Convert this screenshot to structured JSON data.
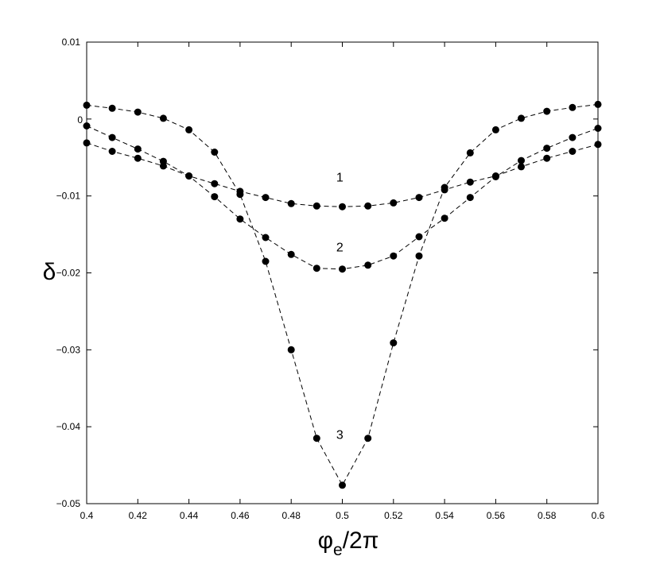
{
  "chart_data": {
    "type": "line",
    "title": "",
    "xlabel": {
      "main": "φ",
      "sub": "e",
      "rest": "/2π"
    },
    "ylabel": "δ",
    "xlim": [
      0.4,
      0.6
    ],
    "ylim": [
      -0.05,
      0.01
    ],
    "xticks": [
      0.4,
      0.42,
      0.44,
      0.46,
      0.48,
      0.5,
      0.52,
      0.54,
      0.56,
      0.58,
      0.6
    ],
    "xtick_labels": [
      "0.4",
      "0.42",
      "0.44",
      "0.46",
      "0.48",
      "0.5",
      "0.52",
      "0.54",
      "0.56",
      "0.58",
      "0.6"
    ],
    "yticks": [
      0.01,
      0,
      -0.01,
      -0.02,
      -0.03,
      -0.04,
      -0.05
    ],
    "ytick_labels": [
      "0.01",
      "0",
      "−0.01",
      "−0.02",
      "−0.03",
      "−0.04",
      "−0.05"
    ],
    "grid": false,
    "line_style": "dashed",
    "marker": "filled-circle",
    "x": [
      0.4,
      0.41,
      0.42,
      0.43,
      0.44,
      0.45,
      0.46,
      0.47,
      0.48,
      0.49,
      0.5,
      0.51,
      0.52,
      0.53,
      0.54,
      0.55,
      0.56,
      0.57,
      0.58,
      0.59,
      0.6
    ],
    "series": [
      {
        "name": "1",
        "label_pos": [
          0.499,
          -0.0081
        ],
        "values": [
          -0.0031,
          -0.0042,
          -0.0051,
          -0.0061,
          -0.0074,
          -0.0084,
          -0.0094,
          -0.0102,
          -0.011,
          -0.0113,
          -0.0114,
          -0.0113,
          -0.0109,
          -0.0102,
          -0.0092,
          -0.0082,
          -0.0074,
          -0.0062,
          -0.0051,
          -0.0042,
          -0.0033
        ]
      },
      {
        "name": "2",
        "label_pos": [
          0.499,
          -0.0172
        ],
        "values": [
          -0.0009,
          -0.0024,
          -0.0039,
          -0.0055,
          -0.0074,
          -0.0101,
          -0.013,
          -0.0154,
          -0.0176,
          -0.0194,
          -0.0195,
          -0.019,
          -0.0178,
          -0.0153,
          -0.0129,
          -0.0102,
          -0.0075,
          -0.0054,
          -0.0038,
          -0.0024,
          -0.0012
        ]
      },
      {
        "name": "3",
        "label_pos": [
          0.499,
          -0.0416
        ],
        "values": [
          0.0018,
          0.0014,
          0.0009,
          0.0001,
          -0.0014,
          -0.0043,
          -0.0098,
          -0.0185,
          -0.03,
          -0.0415,
          -0.0476,
          -0.0415,
          -0.0291,
          -0.0178,
          -0.0089,
          -0.0044,
          -0.0014,
          0.0001,
          0.001,
          0.0015,
          0.0019
        ]
      }
    ]
  }
}
